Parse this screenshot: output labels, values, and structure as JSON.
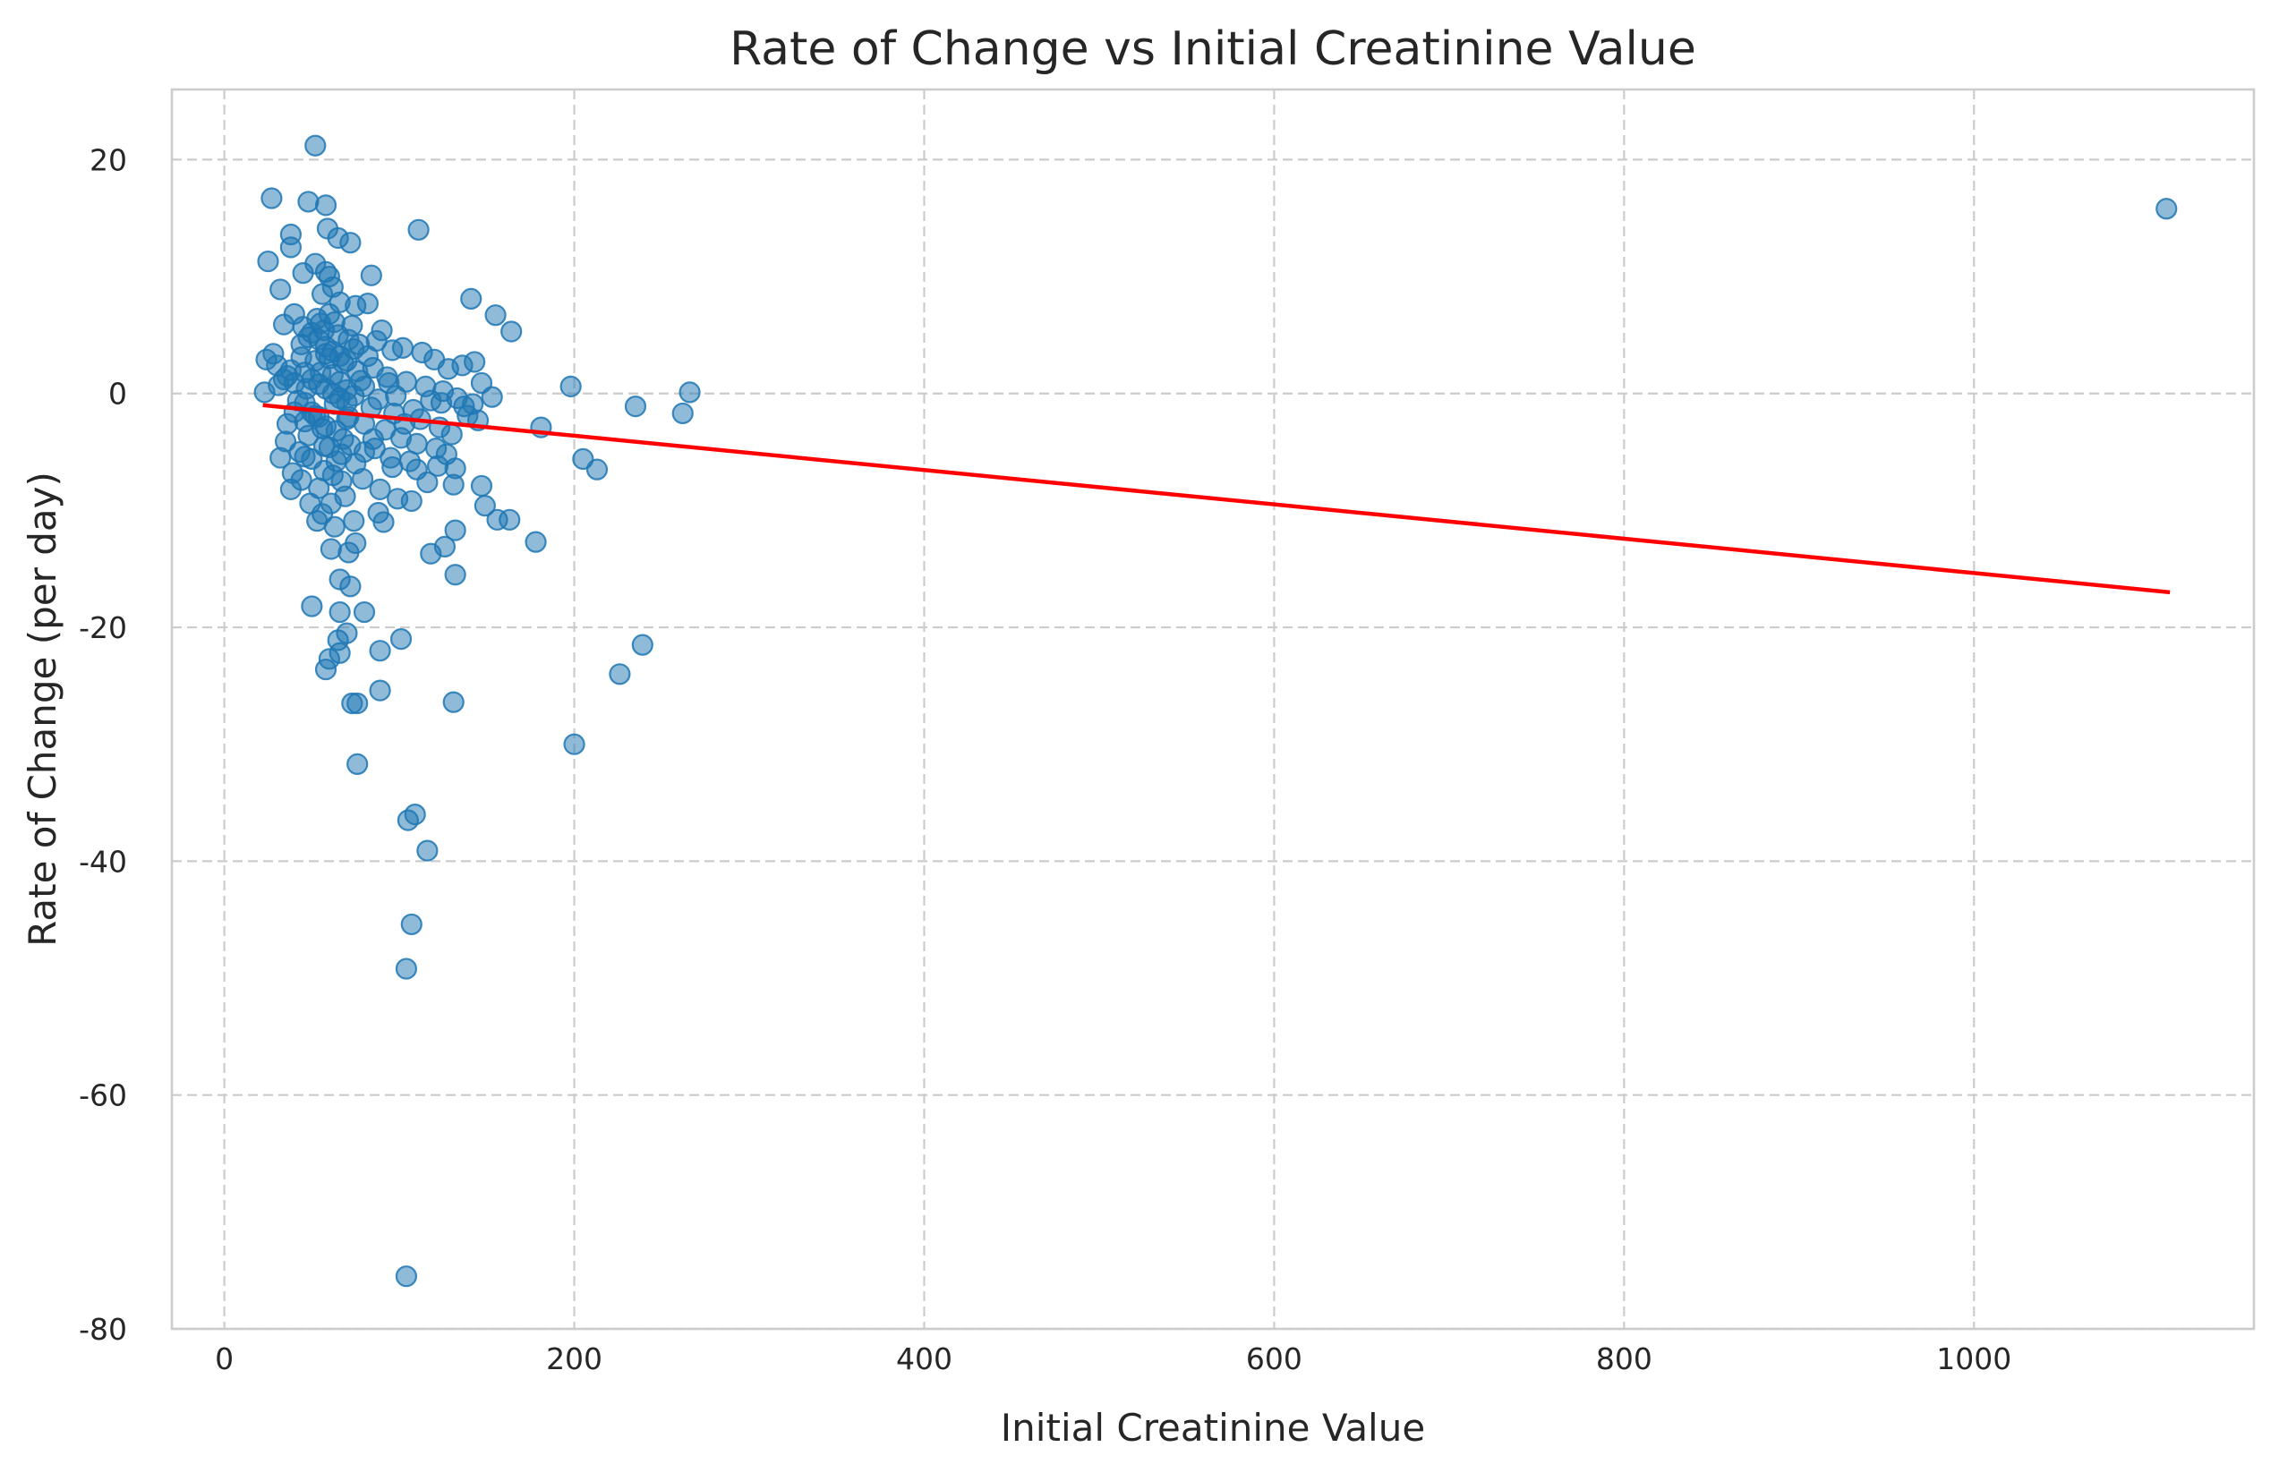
{
  "chart_data": {
    "type": "scatter",
    "title": "Rate of Change vs Initial Creatinine Value",
    "xlabel": "Initial Creatinine Value",
    "ylabel": "Rate of Change (per day)",
    "xlim": [
      -30,
      1160
    ],
    "ylim": [
      -80,
      26
    ],
    "xticks": [
      0,
      200,
      400,
      600,
      800,
      1000
    ],
    "yticks": [
      20,
      0,
      -20,
      -40,
      -60,
      -80
    ],
    "grid": true,
    "colors": {
      "points": "#1f77b4",
      "trend": "#ff0000"
    },
    "trendline": {
      "x": [
        22,
        1112
      ],
      "y": [
        -1.0,
        -17.0
      ]
    },
    "points": [
      [
        52,
        21.2
      ],
      [
        27,
        16.7
      ],
      [
        48,
        16.4
      ],
      [
        58,
        16.1
      ],
      [
        111,
        14.0
      ],
      [
        38,
        13.6
      ],
      [
        59,
        14.1
      ],
      [
        72,
        12.9
      ],
      [
        38,
        12.5
      ],
      [
        65,
        13.3
      ],
      [
        25,
        11.3
      ],
      [
        52,
        11.1
      ],
      [
        58,
        10.4
      ],
      [
        60,
        10.0
      ],
      [
        45,
        10.3
      ],
      [
        84,
        10.1
      ],
      [
        32,
        8.9
      ],
      [
        62,
        9.1
      ],
      [
        56,
        8.5
      ],
      [
        141,
        8.1
      ],
      [
        66,
        7.8
      ],
      [
        75,
        7.5
      ],
      [
        82,
        7.7
      ],
      [
        155,
        6.7
      ],
      [
        40,
        6.8
      ],
      [
        53,
        6.4
      ],
      [
        34,
        5.9
      ],
      [
        164,
        5.3
      ],
      [
        90,
        5.4
      ],
      [
        45,
        5.7
      ],
      [
        57,
        5.4
      ],
      [
        63,
        6.1
      ],
      [
        48,
        4.8
      ],
      [
        71,
        4.6
      ],
      [
        96,
        3.7
      ],
      [
        102,
        3.9
      ],
      [
        113,
        3.5
      ],
      [
        120,
        2.9
      ],
      [
        128,
        2.1
      ],
      [
        136,
        2.4
      ],
      [
        143,
        2.7
      ],
      [
        24,
        2.9
      ],
      [
        30,
        2.4
      ],
      [
        28,
        3.4
      ],
      [
        38,
        2.0
      ],
      [
        44,
        3.1
      ],
      [
        52,
        2.8
      ],
      [
        60,
        3.0
      ],
      [
        68,
        2.6
      ],
      [
        76,
        1.9
      ],
      [
        85,
        2.2
      ],
      [
        93,
        1.4
      ],
      [
        104,
        1.0
      ],
      [
        115,
        0.6
      ],
      [
        125,
        0.2
      ],
      [
        133,
        -0.4
      ],
      [
        147,
        0.9
      ],
      [
        153,
        -0.3
      ],
      [
        198,
        0.6
      ],
      [
        266,
        0.1
      ],
      [
        235,
        -1.1
      ],
      [
        262,
        -1.7
      ],
      [
        181,
        -2.9
      ],
      [
        23,
        0.1
      ],
      [
        31,
        0.7
      ],
      [
        36,
        1.5
      ],
      [
        42,
        -0.6
      ],
      [
        47,
        0.4
      ],
      [
        55,
        1.8
      ],
      [
        63,
        -0.9
      ],
      [
        70,
        0.3
      ],
      [
        78,
        1.1
      ],
      [
        88,
        -0.5
      ],
      [
        98,
        -0.2
      ],
      [
        108,
        -1.4
      ],
      [
        118,
        -0.6
      ],
      [
        139,
        -1.9
      ],
      [
        145,
        -2.3
      ],
      [
        40,
        -1.6
      ],
      [
        46,
        -2.4
      ],
      [
        52,
        -1.9
      ],
      [
        58,
        -2.8
      ],
      [
        64,
        -3.2
      ],
      [
        71,
        -2.0
      ],
      [
        80,
        -2.6
      ],
      [
        92,
        -3.1
      ],
      [
        101,
        -3.8
      ],
      [
        110,
        -4.3
      ],
      [
        121,
        -4.7
      ],
      [
        130,
        -3.5
      ],
      [
        35,
        -4.1
      ],
      [
        43,
        -5.0
      ],
      [
        50,
        -5.6
      ],
      [
        57,
        -4.5
      ],
      [
        67,
        -5.2
      ],
      [
        75,
        -6.0
      ],
      [
        86,
        -4.7
      ],
      [
        96,
        -6.3
      ],
      [
        106,
        -5.8
      ],
      [
        116,
        -7.6
      ],
      [
        32,
        -5.5
      ],
      [
        39,
        -6.8
      ],
      [
        44,
        -7.4
      ],
      [
        54,
        -8.1
      ],
      [
        62,
        -7.0
      ],
      [
        69,
        -8.8
      ],
      [
        79,
        -7.3
      ],
      [
        89,
        -8.2
      ],
      [
        99,
        -9.0
      ],
      [
        132,
        -6.4
      ],
      [
        38,
        -8.2
      ],
      [
        49,
        -9.4
      ],
      [
        56,
        -10.3
      ],
      [
        63,
        -11.4
      ],
      [
        74,
        -10.9
      ],
      [
        88,
        -10.2
      ],
      [
        91,
        -11.0
      ],
      [
        107,
        -9.2
      ],
      [
        131,
        -7.8
      ],
      [
        147,
        -7.9
      ],
      [
        149,
        -9.6
      ],
      [
        156,
        -10.8
      ],
      [
        163,
        -10.8
      ],
      [
        178,
        -12.7
      ],
      [
        132,
        -11.7
      ],
      [
        126,
        -13.1
      ],
      [
        118,
        -13.7
      ],
      [
        61,
        -13.3
      ],
      [
        71,
        -13.6
      ],
      [
        75,
        -12.8
      ],
      [
        66,
        -15.9
      ],
      [
        72,
        -16.5
      ],
      [
        132,
        -15.5
      ],
      [
        50,
        -18.2
      ],
      [
        66,
        -18.7
      ],
      [
        80,
        -18.7
      ],
      [
        205,
        -5.6
      ],
      [
        213,
        -6.5
      ],
      [
        101,
        -21.0
      ],
      [
        70,
        -20.5
      ],
      [
        65,
        -21.1
      ],
      [
        89,
        -22.0
      ],
      [
        60,
        -22.7
      ],
      [
        66,
        -22.2
      ],
      [
        58,
        -23.6
      ],
      [
        239,
        -21.5
      ],
      [
        226,
        -24.0
      ],
      [
        89,
        -25.4
      ],
      [
        73,
        -26.5
      ],
      [
        76,
        -26.5
      ],
      [
        131,
        -26.4
      ],
      [
        200,
        -30.0
      ],
      [
        76,
        -31.7
      ],
      [
        109,
        -36.0
      ],
      [
        105,
        -36.5
      ],
      [
        116,
        -39.1
      ],
      [
        107,
        -45.4
      ],
      [
        104,
        -49.2
      ],
      [
        104,
        -75.5
      ],
      [
        1110,
        15.8
      ],
      [
        50,
        5.2
      ],
      [
        54,
        4.6
      ],
      [
        58,
        4.0
      ],
      [
        62,
        3.6
      ],
      [
        66,
        3.2
      ],
      [
        70,
        2.8
      ],
      [
        50,
        1.2
      ],
      [
        54,
        0.8
      ],
      [
        58,
        0.4
      ],
      [
        62,
        0.0
      ],
      [
        66,
        -0.4
      ],
      [
        70,
        -0.8
      ],
      [
        50,
        -1.6
      ],
      [
        54,
        -2.0
      ],
      [
        58,
        3.4
      ],
      [
        62,
        1.6
      ],
      [
        66,
        1.0
      ],
      [
        70,
        -2.2
      ],
      [
        46,
        1.8
      ],
      [
        46,
        -0.8
      ],
      [
        74,
        -0.2
      ],
      [
        74,
        3.8
      ],
      [
        80,
        0.6
      ],
      [
        84,
        -1.2
      ],
      [
        82,
        3.2
      ],
      [
        94,
        0.9
      ],
      [
        97,
        -1.7
      ],
      [
        60,
        -4.6
      ],
      [
        64,
        -5.8
      ],
      [
        68,
        -3.9
      ],
      [
        44,
        4.2
      ],
      [
        48,
        -3.6
      ],
      [
        56,
        -3.0
      ],
      [
        72,
        -4.4
      ],
      [
        36,
        -2.6
      ],
      [
        40,
        0.9
      ],
      [
        34,
        1.2
      ],
      [
        85,
        -3.9
      ],
      [
        103,
        -2.6
      ],
      [
        112,
        -2.2
      ],
      [
        123,
        -2.9
      ],
      [
        127,
        -5.2
      ],
      [
        122,
        -6.2
      ],
      [
        137,
        -1.1
      ],
      [
        142,
        -0.9
      ],
      [
        124,
        -0.8
      ],
      [
        60,
        6.8
      ],
      [
        65,
        5.0
      ],
      [
        55,
        6.0
      ],
      [
        73,
        5.8
      ],
      [
        87,
        4.5
      ],
      [
        77,
        4.2
      ],
      [
        57,
        -6.6
      ],
      [
        67,
        -7.5
      ],
      [
        53,
        -10.9
      ],
      [
        61,
        -9.4
      ],
      [
        80,
        -5.0
      ],
      [
        95,
        -5.5
      ],
      [
        110,
        -6.5
      ],
      [
        46,
        -5.4
      ]
    ]
  }
}
